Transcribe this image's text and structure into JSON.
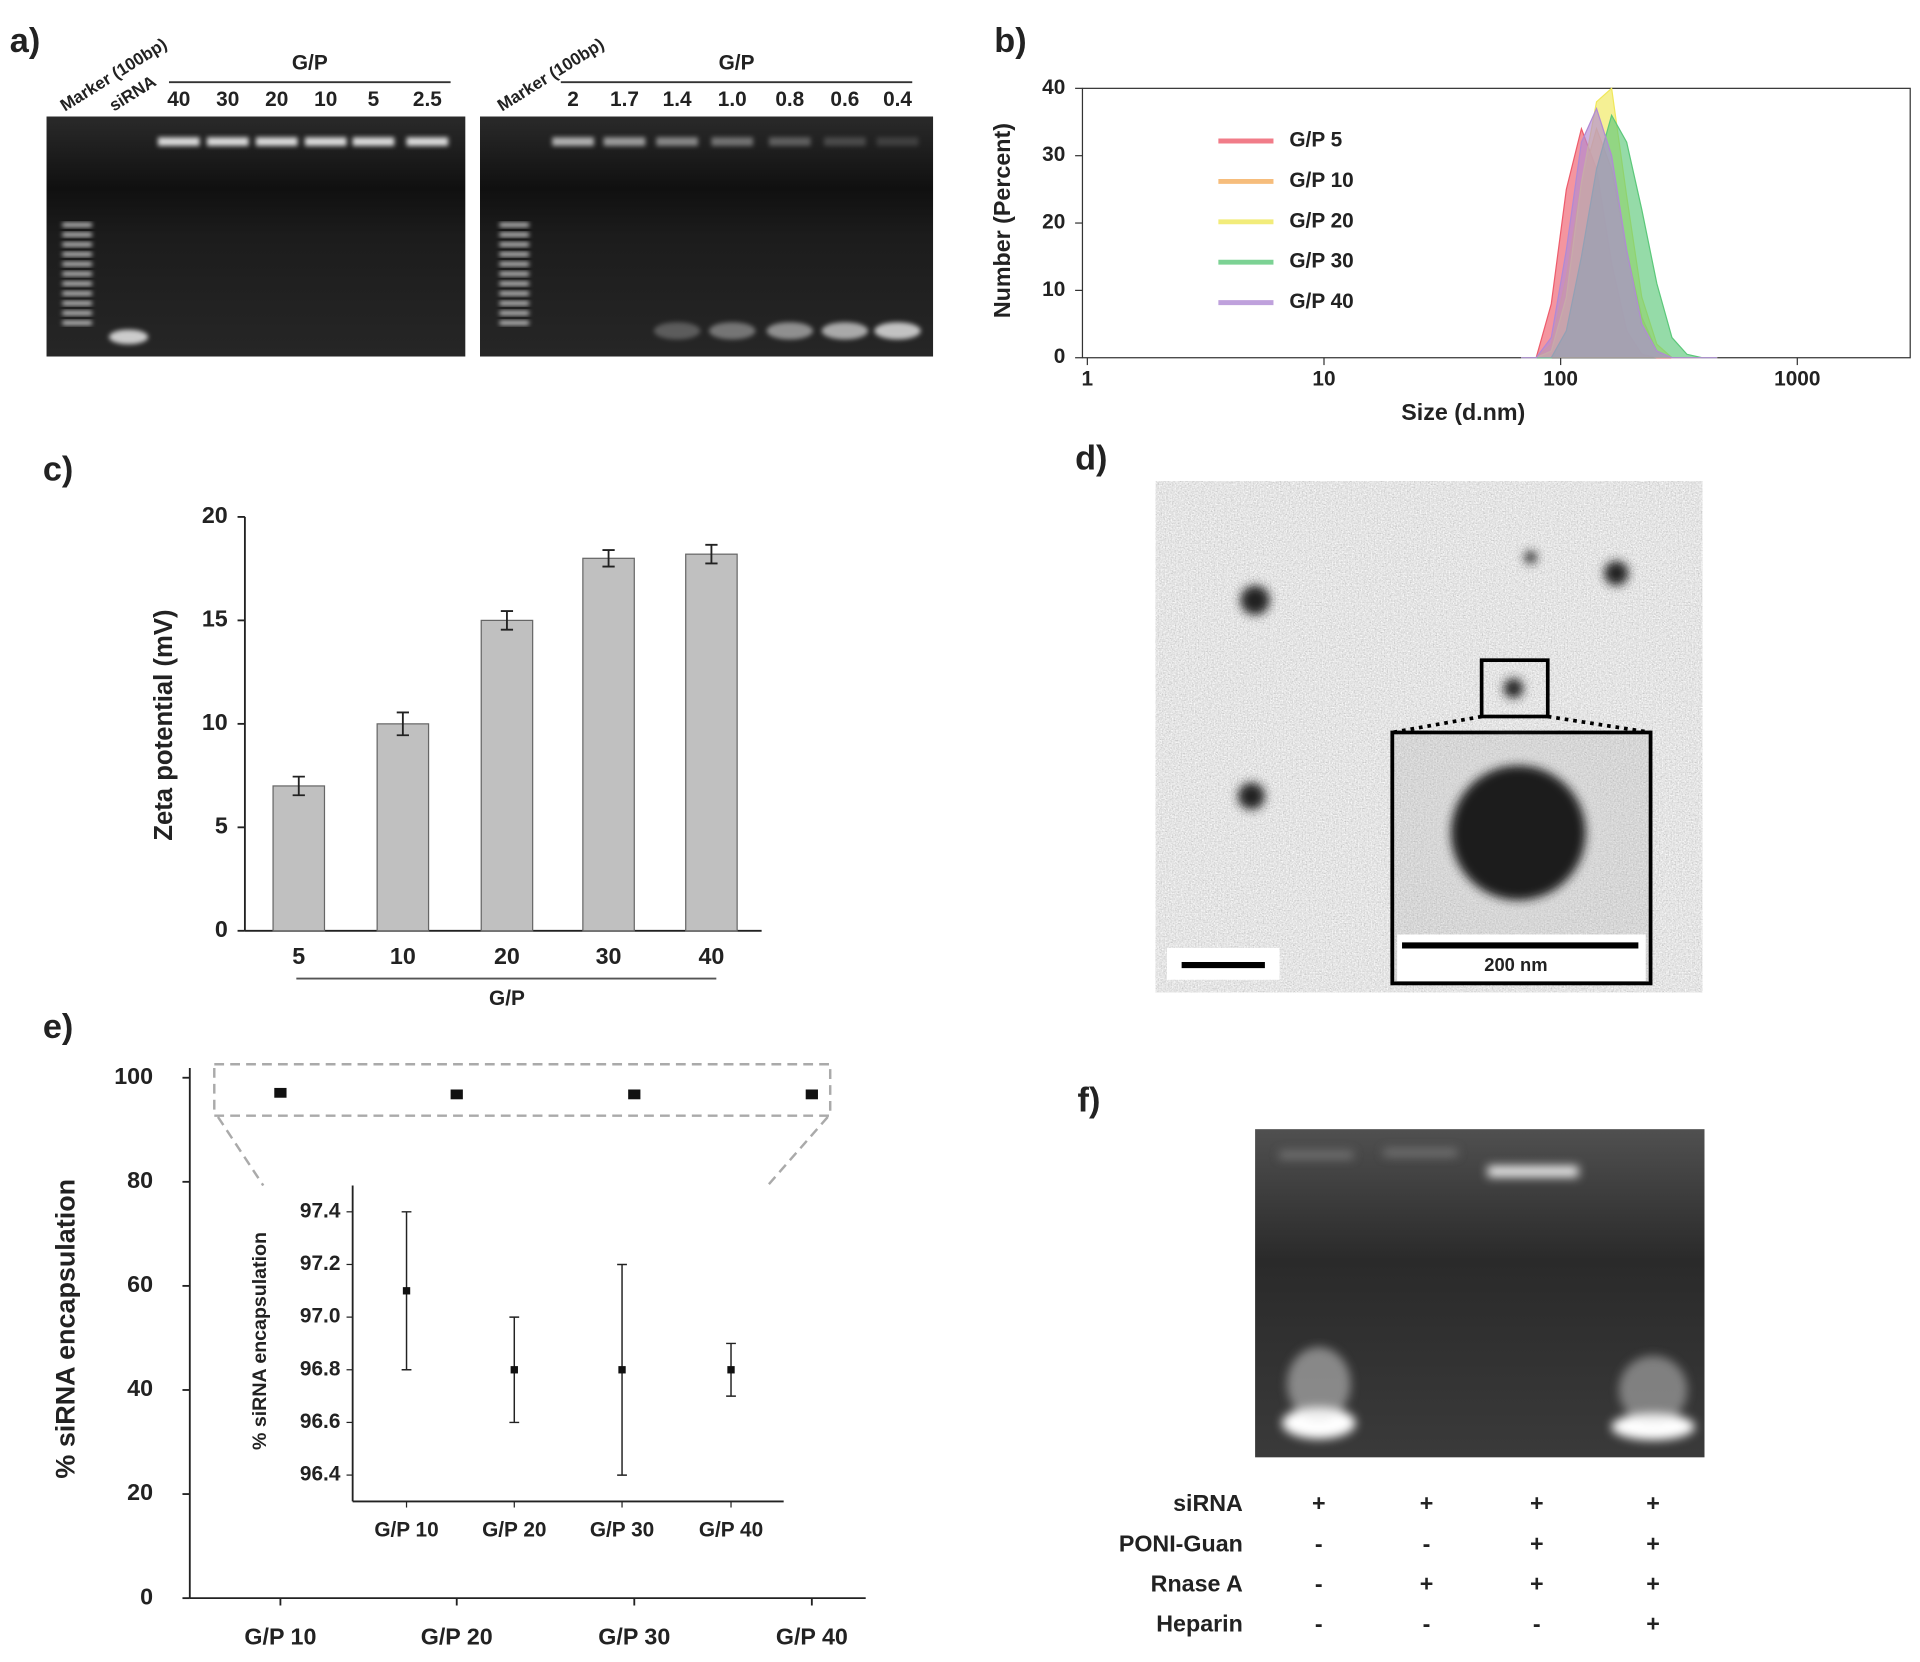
{
  "panel_a": {
    "label": "a)",
    "gels": [
      {
        "marker": "Marker (100bp)",
        "sirna": "siRNA",
        "group": "G/P",
        "lanes": [
          "40",
          "30",
          "20",
          "10",
          "5",
          "2.5"
        ]
      },
      {
        "marker": "Marker (100bp)",
        "group": "G/P",
        "lanes": [
          "2",
          "1.7",
          "1.4",
          "1.0",
          "0.8",
          "0.6",
          "0.4"
        ]
      }
    ]
  },
  "chart_data": [
    {
      "type": "area",
      "panel_label": "b)",
      "xlabel": "Size (d.nm)",
      "ylabel": "Number (Percent)",
      "xscale": "log",
      "xlim": [
        1,
        3000
      ],
      "xticks": [
        1,
        10,
        100,
        1000
      ],
      "ylim": [
        0,
        40
      ],
      "yticks": [
        0,
        10,
        20,
        30,
        40
      ],
      "legend": "upper left",
      "x": [
        68.1,
        78.8,
        91.3,
        105.7,
        122.4,
        141.8,
        164.2,
        190.1,
        220.2,
        255,
        295.3,
        342,
        396.1,
        458.7
      ],
      "series": [
        {
          "name": "G/P 5",
          "color": "#ee5c6c",
          "values": [
            0,
            0,
            8,
            25,
            34,
            28,
            14,
            4,
            0.5,
            0,
            0,
            0,
            0,
            0
          ]
        },
        {
          "name": "G/P 10",
          "color": "#f4ad5c",
          "values": [
            0,
            0,
            2,
            12,
            26,
            34,
            28,
            16,
            6,
            1,
            0,
            0,
            0,
            0
          ]
        },
        {
          "name": "G/P 20",
          "color": "#f0e85a",
          "values": [
            0,
            0,
            1,
            9,
            26,
            38,
            40,
            24,
            9,
            2,
            0,
            0,
            0,
            0
          ]
        },
        {
          "name": "G/P 30",
          "color": "#5cc87a",
          "values": [
            0,
            0,
            0,
            4,
            15,
            28,
            36,
            32,
            22,
            11,
            3,
            0.5,
            0,
            0
          ]
        },
        {
          "name": "G/P 40",
          "color": "#b08ad4",
          "values": [
            0,
            0,
            3,
            16,
            32,
            37,
            30,
            16,
            5,
            1,
            0,
            0,
            0,
            0
          ]
        }
      ]
    },
    {
      "type": "bar",
      "panel_label": "c)",
      "ylabel": "Zeta potential (mV)",
      "xlabel": "G/P",
      "categories": [
        "5",
        "10",
        "20",
        "30",
        "40"
      ],
      "values": [
        7,
        10,
        15,
        18,
        18.2
      ],
      "errors": [
        0.45,
        0.55,
        0.45,
        0.4,
        0.45
      ],
      "color": "#c0c0c0",
      "ylim": [
        0,
        20
      ],
      "yticks": [
        0,
        5,
        10,
        15,
        20
      ]
    },
    {
      "type": "scatter",
      "panel_label": "e)",
      "ylabel": "% siRNA encapsulation",
      "categories": [
        "G/P 10",
        "G/P 20",
        "G/P 30",
        "G/P 40"
      ],
      "values": [
        97.1,
        96.8,
        96.8,
        96.8
      ],
      "errors": [
        0.3,
        0.2,
        0.4,
        0.1
      ],
      "color": "#111111",
      "ylim": [
        0,
        100
      ],
      "yticks": [
        0,
        20,
        40,
        60,
        80,
        100
      ],
      "inset": {
        "ylabel": "% siRNA encapsulation",
        "categories": [
          "G/P 10",
          "G/P 20",
          "G/P 30",
          "G/P 40"
        ],
        "ylim": [
          96.3,
          97.5
        ],
        "yticks": [
          96.4,
          96.6,
          96.8,
          {
            "value": 97,
            "label": "97.0"
          },
          97.2,
          97.4
        ]
      }
    }
  ],
  "panel_d": {
    "label": "d)",
    "scale_label": "200 nm"
  },
  "panel_f": {
    "label": "f)",
    "rows": [
      {
        "name": "siRNA",
        "cells": [
          "+",
          "+",
          "+",
          "+"
        ]
      },
      {
        "name": "PONI-Guan",
        "cells": [
          "-",
          "-",
          "+",
          "+"
        ]
      },
      {
        "name": "Rnase A",
        "cells": [
          "-",
          "+",
          "+",
          "+"
        ]
      },
      {
        "name": "Heparin",
        "cells": [
          "-",
          "-",
          "-",
          "+"
        ]
      }
    ]
  }
}
